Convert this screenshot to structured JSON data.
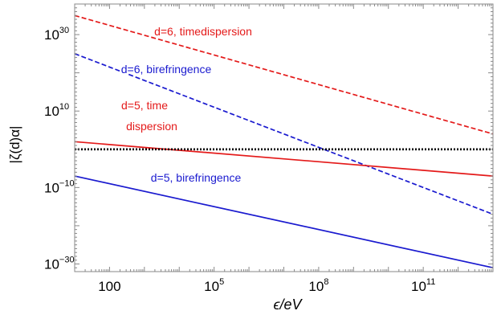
{
  "chart_data": {
    "type": "line",
    "title": "",
    "xlabel": "ϵ/eV",
    "ylabel": "|ζ(d)α|",
    "xscale": "log",
    "yscale": "log",
    "xlim": [
      10,
      10000000000000.0
    ],
    "ylim": [
      1e-32,
      1e+38
    ],
    "grid": false,
    "xticks": [
      {
        "base": "100",
        "exp": ""
      },
      {
        "base": "10",
        "exp": "5"
      },
      {
        "base": "10",
        "exp": "8"
      },
      {
        "base": "10",
        "exp": "11"
      }
    ],
    "yticks": [
      {
        "base": "10",
        "exp": "30"
      },
      {
        "base": "10",
        "exp": "10"
      },
      {
        "base": "10",
        "exp": "−10"
      },
      {
        "base": "10",
        "exp": "−30"
      }
    ],
    "series": [
      {
        "name": "d=6, timedispersion",
        "color": "#e41a1a",
        "dash": "dashed",
        "x": [
          10,
          10000000000000.0
        ],
        "y": [
          1e+35,
          10000.0
        ]
      },
      {
        "name": "d=6, birefringence",
        "color": "#1a1acf",
        "dash": "dashed",
        "x": [
          10,
          10000000000000.0
        ],
        "y": [
          1e+25,
          1e-17
        ]
      },
      {
        "name": "d=5, time dispersion",
        "color": "#e41a1a",
        "dash": "solid",
        "x": [
          10,
          10000000000000.0
        ],
        "y": [
          100.0,
          1e-07
        ]
      },
      {
        "name": "d=5, birefringence",
        "color": "#1a1acf",
        "dash": "solid",
        "x": [
          10,
          10000000000000.0
        ],
        "y": [
          1e-07,
          1e-31
        ]
      },
      {
        "name": "",
        "color": "#000000",
        "dash": "dotted",
        "x": [
          10,
          10000000000000.0
        ],
        "y": [
          1,
          1
        ]
      }
    ],
    "annotations": [
      {
        "text": "d=6, timedispersion",
        "color": "#e41a1a"
      },
      {
        "text": "d=6, birefringence",
        "color": "#1a1acf"
      },
      {
        "text": "d=5, time",
        "color": "#e41a1a"
      },
      {
        "text": "dispersion",
        "color": "#e41a1a"
      },
      {
        "text": "d=5, birefringence",
        "color": "#1a1acf"
      }
    ]
  }
}
